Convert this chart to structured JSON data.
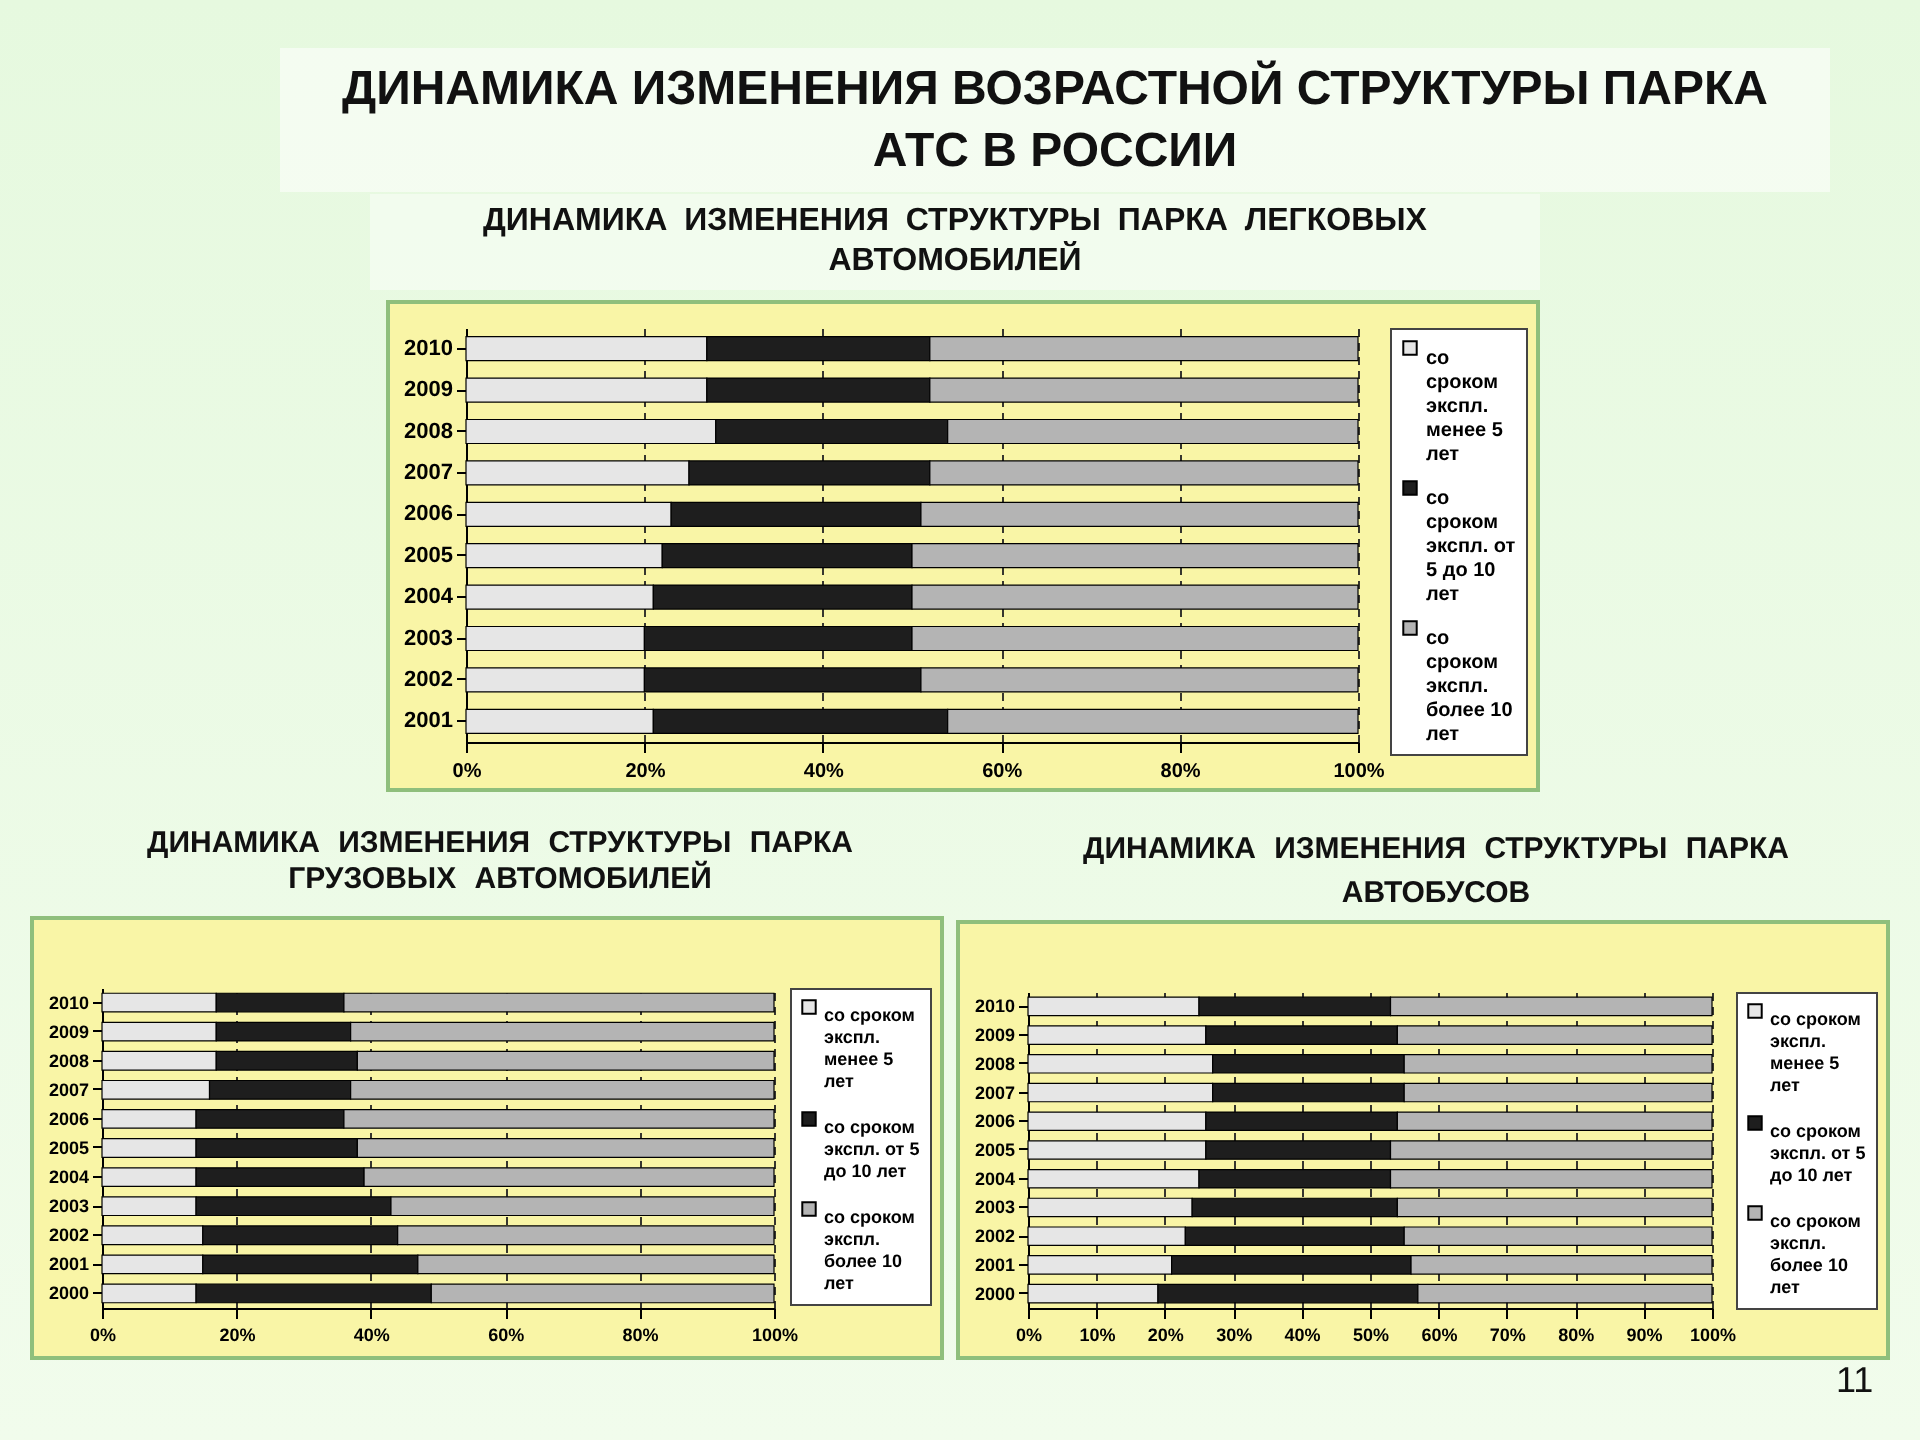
{
  "chart_data": [
    {
      "type": "bar",
      "orientation": "horizontal",
      "stacked": true,
      "title": "ДИНАМИКА ИЗМЕНЕНИЯ ВОЗРАСТНОЙ СТРУКТУРЫ ПАРКА АТС В РОССИИ",
      "subtitle": "ДИНАМИКА ИЗМЕНЕНИЯ СТРУКТУРЫ ПАРКА ЛЕГКОВЫХ АВТОМОБИЛЕЙ",
      "categories": [
        "2010",
        "2009",
        "2008",
        "2007",
        "2006",
        "2005",
        "2004",
        "2003",
        "2002",
        "2001"
      ],
      "series": [
        {
          "name": "со сроком экспл. менее 5 лет",
          "color": "#e6e6e6",
          "values": [
            27,
            27,
            28,
            25,
            23,
            22,
            21,
            20,
            20,
            21
          ]
        },
        {
          "name": "со сроком экспл. от 5 до 10 лет",
          "color": "#1e1e1e",
          "values": [
            25,
            25,
            26,
            27,
            28,
            28,
            29,
            30,
            31,
            33
          ]
        },
        {
          "name": "со сроком экспл. более 10 лет",
          "color": "#b4b4b4",
          "values": [
            48,
            48,
            46,
            48,
            49,
            50,
            50,
            50,
            49,
            46
          ]
        }
      ],
      "xlim": [
        0,
        100
      ],
      "xticks": [
        {
          "value": 0,
          "label": "0%"
        },
        {
          "value": 20,
          "label": "20%"
        },
        {
          "value": 40,
          "label": "40%"
        },
        {
          "value": 60,
          "label": "60%"
        },
        {
          "value": 80,
          "label": "80%"
        },
        {
          "value": 100,
          "label": "100%"
        }
      ],
      "grid": "x",
      "legend": "right"
    },
    {
      "type": "bar",
      "orientation": "horizontal",
      "stacked": true,
      "title": "ДИНАМИКА ИЗМЕНЕНИЯ СТРУКТУРЫ ПАРКА ГРУЗОВЫХ АВТОМОБИЛЕЙ",
      "categories": [
        "2010",
        "2009",
        "2008",
        "2007",
        "2006",
        "2005",
        "2004",
        "2003",
        "2002",
        "2001",
        "2000"
      ],
      "series": [
        {
          "name": "со сроком экспл. менее 5 лет",
          "color": "#e6e6e6",
          "values": [
            17,
            17,
            17,
            16,
            14,
            14,
            14,
            14,
            15,
            15,
            14
          ]
        },
        {
          "name": "со сроком экспл. от 5 до 10 лет",
          "color": "#1e1e1e",
          "values": [
            19,
            20,
            21,
            21,
            22,
            24,
            25,
            29,
            29,
            32,
            35
          ]
        },
        {
          "name": "со сроком экспл. более 10 лет",
          "color": "#b4b4b4",
          "values": [
            64,
            63,
            62,
            63,
            64,
            62,
            61,
            57,
            56,
            53,
            51
          ]
        }
      ],
      "xlim": [
        0,
        100
      ],
      "xticks": [
        {
          "value": 0,
          "label": "0%"
        },
        {
          "value": 20,
          "label": "20%"
        },
        {
          "value": 40,
          "label": "40%"
        },
        {
          "value": 60,
          "label": "60%"
        },
        {
          "value": 80,
          "label": "80%"
        },
        {
          "value": 100,
          "label": "100%"
        }
      ],
      "grid": "x",
      "legend": "right"
    },
    {
      "type": "bar",
      "orientation": "horizontal",
      "stacked": true,
      "title": "ДИНАМИКА ИЗМЕНЕНИЯ СТРУКТУРЫ ПАРКА АВТОБУСОВ",
      "categories": [
        "2010",
        "2009",
        "2008",
        "2007",
        "2006",
        "2005",
        "2004",
        "2003",
        "2002",
        "2001",
        "2000"
      ],
      "series": [
        {
          "name": "со сроком экспл. менее 5 лет",
          "color": "#e6e6e6",
          "values": [
            25,
            26,
            27,
            27,
            26,
            26,
            25,
            24,
            23,
            21,
            19
          ]
        },
        {
          "name": "со сроком экспл. от 5 до 10 лет",
          "color": "#1e1e1e",
          "values": [
            28,
            28,
            28,
            28,
            28,
            27,
            28,
            30,
            32,
            35,
            38
          ]
        },
        {
          "name": "со сроком экспл. более 10 лет",
          "color": "#b4b4b4",
          "values": [
            47,
            46,
            45,
            45,
            46,
            47,
            47,
            46,
            45,
            44,
            43
          ]
        }
      ],
      "xlim": [
        0,
        100
      ],
      "xticks": [
        {
          "value": 0,
          "label": "0%"
        },
        {
          "value": 10,
          "label": "10%"
        },
        {
          "value": 20,
          "label": "20%"
        },
        {
          "value": 30,
          "label": "30%"
        },
        {
          "value": 40,
          "label": "40%"
        },
        {
          "value": 50,
          "label": "50%"
        },
        {
          "value": 60,
          "label": "60%"
        },
        {
          "value": 70,
          "label": "70%"
        },
        {
          "value": 80,
          "label": "80%"
        },
        {
          "value": 90,
          "label": "90%"
        },
        {
          "value": 100,
          "label": "100%"
        }
      ],
      "grid": "x",
      "legend": "right",
      "annotations": [
        "11"
      ]
    }
  ]
}
